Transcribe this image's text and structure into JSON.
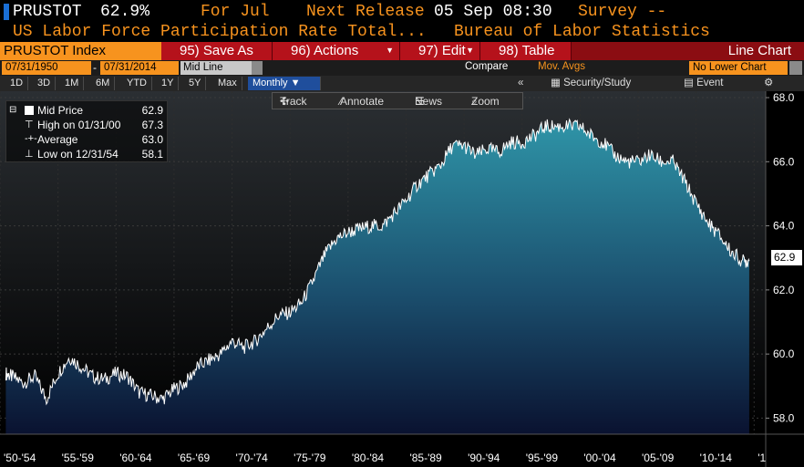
{
  "header": {
    "ticker": "PRUSTOT",
    "last": "62.9%",
    "for_label": "For Jul",
    "next_release_label": "Next Release",
    "next_release_value": "05 Sep 08:30",
    "survey_label": "Survey --"
  },
  "description": {
    "title": "US Labor Force Participation Rate Total...",
    "source": "Bureau of Labor Statistics"
  },
  "toolbar": {
    "index_label": "PRUSTOT Index",
    "save_as": "95) Save As",
    "actions": "96) Actions",
    "edit": "97) Edit",
    "table": "98) Table",
    "view": "Line Chart"
  },
  "controls": {
    "start_date": "07/31/1950",
    "end_date": "07/31/2014",
    "dash": "-",
    "field": "Mid Line",
    "compare": "Compare",
    "mov_avgs": "Mov. Avgs",
    "lower_chart": "No Lower Chart"
  },
  "periods": {
    "items": [
      "1D",
      "3D",
      "1M",
      "6M",
      "YTD",
      "1Y",
      "5Y",
      "Max"
    ],
    "frequency": "Monthly"
  },
  "right_tools": {
    "collapse": "«",
    "security_study": "Security/Study",
    "event": "Event",
    "settings_glyph": "⚙"
  },
  "chart_tools": {
    "track": "Track",
    "annotate": "Annotate",
    "news": "News",
    "zoom": "Zoom"
  },
  "legend": {
    "mid_label": "Mid Price",
    "mid_value": "62.9",
    "high_label": "High on 01/31/00",
    "high_value": "67.3",
    "avg_label": "Average",
    "avg_value": "63.0",
    "low_label": "Low on 12/31/54",
    "low_value": "58.1"
  },
  "last_value_tag": "62.9",
  "colors": {
    "orange": "#f7931e",
    "toolbar_red": "#b5121b",
    "fill_top": "#2f95a8",
    "fill_bottom": "#0e1a3a",
    "background": "#000000"
  },
  "chart_data": {
    "type": "area",
    "title": "US Labor Force Participation Rate Total",
    "ylim": [
      57.5,
      68.2
    ],
    "yticks": [
      58.0,
      60.0,
      62.0,
      64.0,
      66.0,
      68.0
    ],
    "ytick_labels": [
      "58.0",
      "60.0",
      "62.0",
      "64.0",
      "66.0",
      "68.0"
    ],
    "x_tick_labels": [
      "'50-'54",
      "'55-'59",
      "'60-'64",
      "'65-'69",
      "'70-'74",
      "'75-'79",
      "'80-'84",
      "'85-'89",
      "'90-'94",
      "'95-'99",
      "'00-'04",
      "'05-'09",
      "'10-'14",
      "'1"
    ],
    "grid": true,
    "x": [
      1950.5,
      1951.0,
      1952.0,
      1953.0,
      1954.0,
      1955.0,
      1956.0,
      1957.0,
      1958.0,
      1959.0,
      1960.0,
      1961.0,
      1962.0,
      1963.0,
      1964.0,
      1965.0,
      1966.0,
      1967.0,
      1968.0,
      1969.0,
      1970.0,
      1971.0,
      1972.0,
      1973.0,
      1974.0,
      1975.0,
      1976.0,
      1977.0,
      1978.0,
      1979.0,
      1980.0,
      1981.0,
      1982.0,
      1983.0,
      1984.0,
      1985.0,
      1986.0,
      1987.0,
      1988.0,
      1989.0,
      1990.0,
      1991.0,
      1992.0,
      1993.0,
      1994.0,
      1995.0,
      1996.0,
      1997.0,
      1998.0,
      1999.0,
      2000.0,
      2001.0,
      2002.0,
      2003.0,
      2004.0,
      2005.0,
      2006.0,
      2007.0,
      2008.0,
      2009.0,
      2010.0,
      2011.0,
      2012.0,
      2013.0,
      2014.0,
      2014.58
    ],
    "values": [
      59.4,
      59.3,
      59.1,
      59.3,
      58.6,
      59.4,
      59.9,
      59.6,
      59.3,
      59.2,
      59.4,
      59.3,
      58.8,
      58.7,
      58.6,
      58.9,
      59.1,
      59.6,
      59.8,
      60.0,
      60.4,
      60.2,
      60.4,
      60.8,
      61.2,
      61.3,
      61.6,
      62.3,
      63.1,
      63.6,
      63.8,
      63.9,
      64.0,
      64.0,
      64.4,
      64.8,
      65.3,
      65.6,
      65.9,
      66.5,
      66.5,
      66.2,
      66.4,
      66.3,
      66.6,
      66.6,
      66.8,
      67.1,
      67.1,
      67.1,
      67.1,
      66.8,
      66.6,
      66.2,
      66.0,
      66.0,
      66.2,
      66.0,
      66.0,
      65.4,
      64.7,
      64.1,
      63.7,
      63.2,
      62.9,
      62.9
    ]
  }
}
